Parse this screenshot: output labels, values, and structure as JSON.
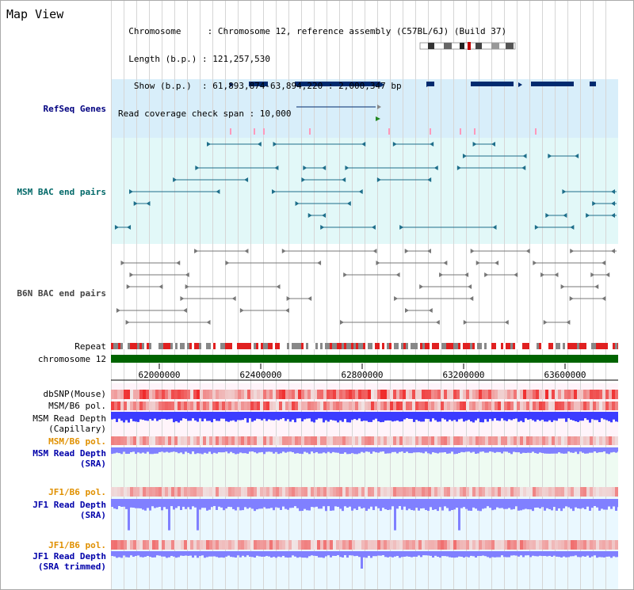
{
  "title": "Map View",
  "info": {
    "lines": [
      "  Chromosome     : Chromosome 12, reference assembly (C57BL/6J) (Build 37)",
      "  Length (b.p.) : 121,257,530",
      "   Show (b.p.)  : 61,893,874-63,894,220 : 2,000,347 bp",
      "Read coverage check span : 10,000"
    ]
  },
  "tracks": {
    "refseq": "RefSeq Genes",
    "msm_bac": "MSM BAC end pairs",
    "b6n_bac": "B6N BAC end pairs",
    "repeat": "Repeat",
    "chromosome": "chromosome 12",
    "dbsnp": "dbSNP(Mouse)",
    "msm_b6_pol_1": "MSM/B6 pol.",
    "msm_read_depth_cap_1": "MSM Read Depth",
    "msm_read_depth_cap_2": "(Capillary)",
    "msm_b6_pol_2": "MSM/B6 pol.",
    "msm_read_depth_sra_1": "MSM Read Depth",
    "msm_read_depth_sra_2": "(SRA)",
    "jf1_b6_pol_1": "JF1/B6 pol.",
    "jf1_read_depth_sra_1": "JF1 Read Depth",
    "jf1_read_depth_sra_2": "(SRA)",
    "jf1_b6_pol_2": "JF1/B6 pol.",
    "jf1_read_depth_trim_1": "JF1 Read Depth",
    "jf1_read_depth_trim_2": "(SRA trimmed)"
  },
  "axis": {
    "ticks": [
      "62000000",
      "62400000",
      "62800000",
      "63200000",
      "63600000"
    ]
  },
  "colors": {
    "refseq_bg": "#d8eefa",
    "bac_bg": "#e2f8f8",
    "b6n_bg": "#ffffff",
    "gene_navy": "#002a6e",
    "msm_teal": "#1e6e8a",
    "b6n_gray": "#777777",
    "chromosome_green": "#006400",
    "depth_blue": "#3c3cff",
    "depth_light_blue": "#8080ff"
  }
}
